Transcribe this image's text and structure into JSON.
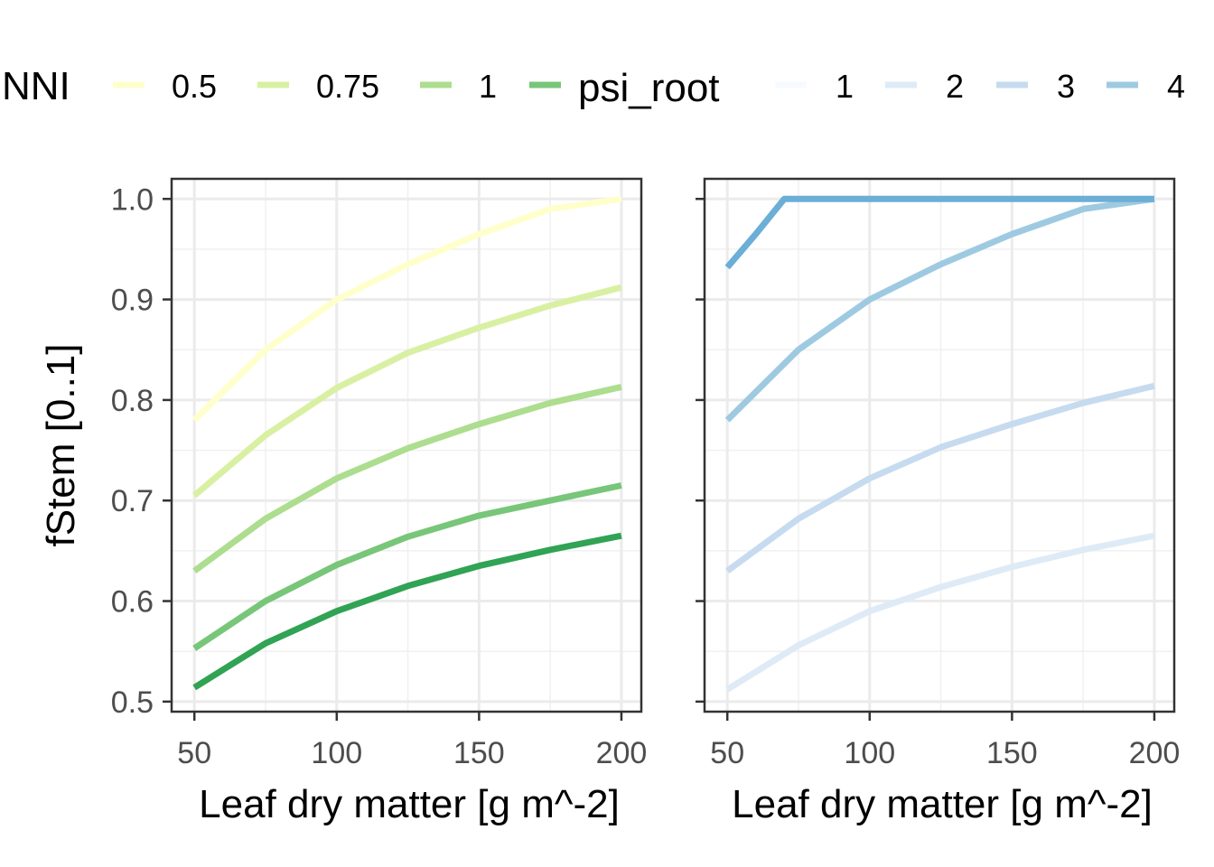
{
  "legend": {
    "nni_title": "NNI",
    "psi_title": "psi_root",
    "nni_keys": [
      {
        "label": "0.5",
        "color": "#ffffcc"
      },
      {
        "label": "0.75",
        "color": "#d9f0a3"
      },
      {
        "label": "1",
        "color": "#addd8e"
      },
      {
        "label": "",
        "color": "#78c679"
      }
    ],
    "psi_keys": [
      {
        "label": "1",
        "color": "#f7fbff"
      },
      {
        "label": "2",
        "color": "#deebf7"
      },
      {
        "label": "3",
        "color": "#c6dbef"
      },
      {
        "label": "4",
        "color": "#9ecae1"
      }
    ]
  },
  "chart_data": [
    {
      "type": "line",
      "xlabel": "Leaf dry matter [g m^-2]",
      "ylabel": "fStem [0..1]",
      "xlim": [
        42,
        207
      ],
      "ylim": [
        0.49,
        1.02
      ],
      "xticks": [
        50,
        100,
        150,
        200
      ],
      "yticks": [
        0.5,
        0.6,
        0.7,
        0.8,
        0.9,
        1.0
      ],
      "ytick_labels": [
        "0.5",
        "0.6",
        "0.7",
        "0.8",
        "0.9",
        "1.0"
      ],
      "x": [
        50,
        75,
        100,
        125,
        150,
        175,
        200
      ],
      "grid": true,
      "series": [
        {
          "color": "#ffffcc",
          "values": [
            0.78,
            0.85,
            0.9,
            0.935,
            0.965,
            0.99,
            1.0
          ]
        },
        {
          "color": "#d9f0a3",
          "values": [
            0.705,
            0.765,
            0.812,
            0.847,
            0.872,
            0.894,
            0.912
          ]
        },
        {
          "color": "#addd8e",
          "values": [
            0.63,
            0.682,
            0.722,
            0.752,
            0.776,
            0.797,
            0.813
          ]
        },
        {
          "color": "#78c679",
          "values": [
            0.553,
            0.6,
            0.636,
            0.664,
            0.685,
            0.7,
            0.715
          ]
        },
        {
          "color": "#31a354",
          "values": [
            0.514,
            0.558,
            0.59,
            0.615,
            0.635,
            0.651,
            0.665
          ]
        }
      ]
    },
    {
      "type": "line",
      "xlabel": "Leaf dry matter [g m^-2]",
      "ylabel": "",
      "xlim": [
        42,
        207
      ],
      "ylim": [
        0.49,
        1.02
      ],
      "xticks": [
        50,
        100,
        150,
        200
      ],
      "yticks": [
        0.5,
        0.6,
        0.7,
        0.8,
        0.9,
        1.0
      ],
      "x": [
        50,
        75,
        100,
        125,
        150,
        175,
        200
      ],
      "grid": true,
      "series": [
        {
          "color": "#deebf7",
          "values": [
            0.512,
            0.556,
            0.59,
            0.614,
            0.634,
            0.651,
            0.665
          ]
        },
        {
          "color": "#c6dbef",
          "values": [
            0.63,
            0.682,
            0.722,
            0.753,
            0.776,
            0.797,
            0.814
          ]
        },
        {
          "color": "#9ecae1",
          "values": [
            0.78,
            0.85,
            0.9,
            0.935,
            0.965,
            0.99,
            1.0
          ]
        },
        {
          "color": "#6baed6",
          "x": [
            50,
            60,
            70,
            200
          ],
          "values": [
            0.932,
            0.965,
            1.0,
            1.0
          ]
        }
      ]
    }
  ]
}
